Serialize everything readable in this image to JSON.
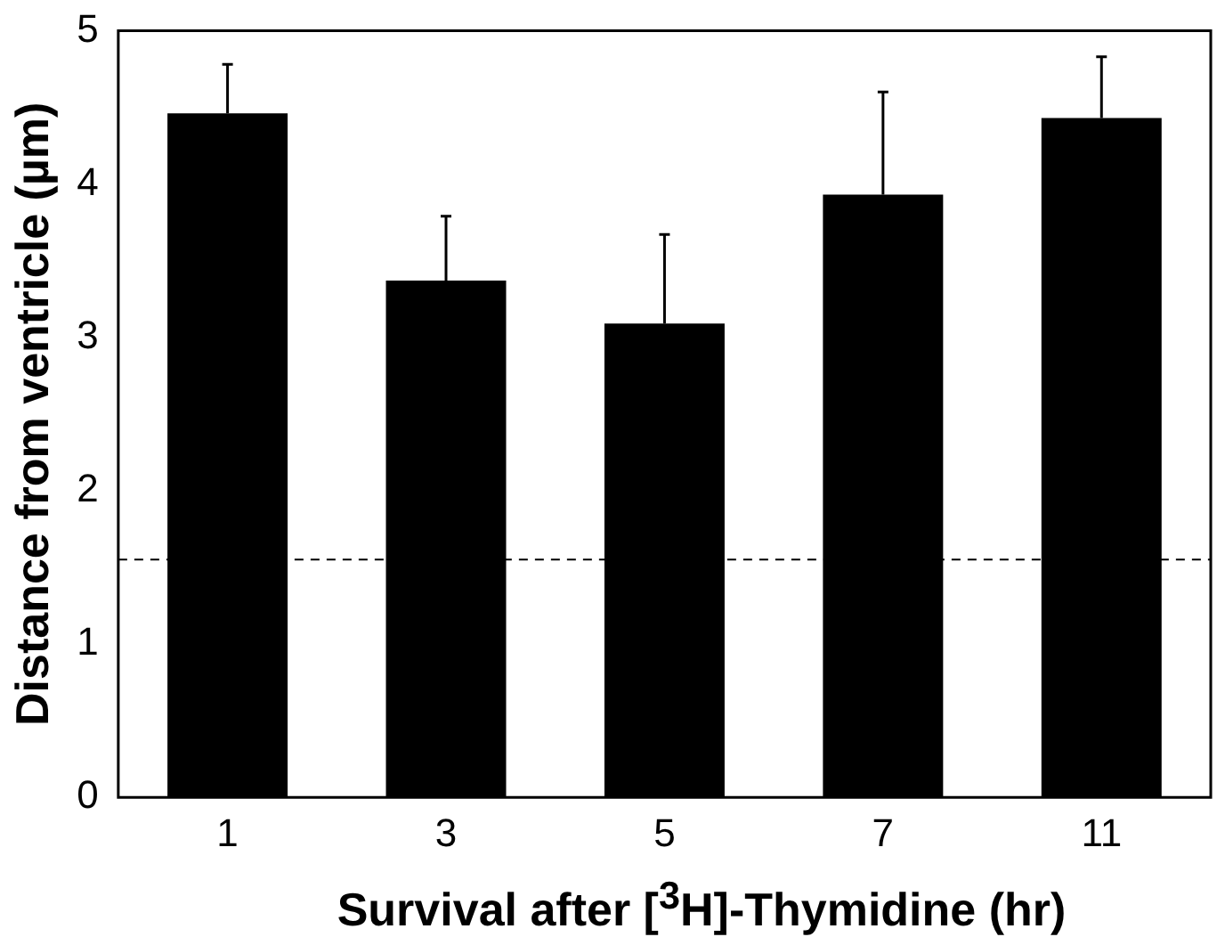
{
  "chart_data": {
    "type": "bar",
    "xlabel": "Survival after [$^{3}$H]-Thymidine (hr)",
    "ylabel": "Distance from ventricle (µm)",
    "categories": [
      "1",
      "3",
      "5",
      "7",
      "11"
    ],
    "values": [
      4.46,
      3.37,
      3.09,
      3.93,
      4.43
    ],
    "errors": [
      [
        4.46,
        4.78
      ],
      [
        3.37,
        3.79
      ],
      [
        3.09,
        3.67
      ],
      [
        3.93,
        4.6
      ],
      [
        4.43,
        4.83
      ]
    ],
    "color": "#000000",
    "ylim": [
      0,
      5
    ],
    "yticks": [
      0,
      1,
      2,
      3,
      4,
      5
    ],
    "grid": false,
    "legend": false,
    "ref_lines": [
      {
        "axis": "y",
        "value": 1.55,
        "color": "#000000",
        "line_style": "dashed"
      }
    ]
  }
}
